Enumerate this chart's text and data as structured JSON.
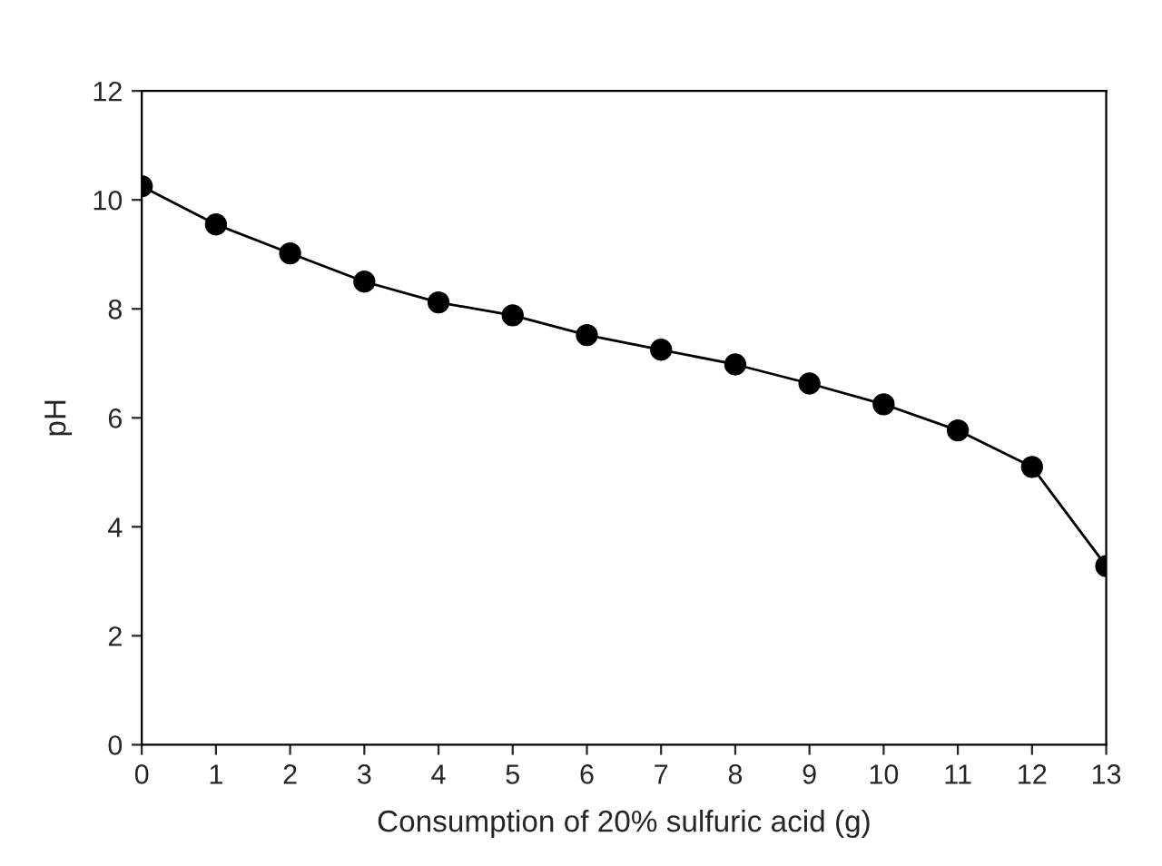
{
  "chart_data": {
    "type": "line",
    "xlabel": "Consumption of 20% sulfuric acid (g)",
    "ylabel": "pH",
    "x": [
      0,
      1,
      2,
      3,
      4,
      5,
      6,
      7,
      8,
      9,
      10,
      11,
      12,
      13
    ],
    "series": [
      {
        "color": "#000000",
        "values": [
          10.25,
          9.55,
          9.02,
          8.5,
          8.12,
          7.88,
          7.52,
          7.25,
          6.98,
          6.63,
          6.25,
          5.77,
          5.1,
          3.28
        ]
      }
    ],
    "xlim": [
      0,
      13
    ],
    "xticks": [
      0,
      1,
      2,
      3,
      4,
      5,
      6,
      7,
      8,
      9,
      10,
      11,
      12,
      13
    ],
    "ylim": [
      0,
      12
    ],
    "yticks": [
      0,
      2,
      4,
      6,
      8,
      10,
      12
    ],
    "marker": "circle",
    "line_style": "solid",
    "grid": false,
    "legend": false
  }
}
